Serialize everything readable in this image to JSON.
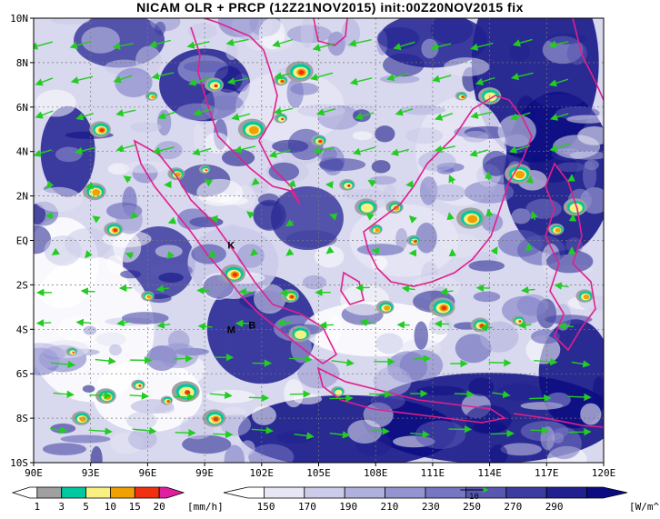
{
  "title": "NICAM OLR + PRCP (12Z21NOV2015) init:00Z20NOV2015 fix",
  "lat_labels": [
    "10N",
    "8N",
    "6N",
    "4N",
    "2N",
    "EQ",
    "2S",
    "4S",
    "6S",
    "8S",
    "10S"
  ],
  "lon_labels": [
    "90E",
    "93E",
    "96E",
    "99E",
    "102E",
    "105E",
    "108E",
    "111E",
    "114E",
    "117E",
    "120E"
  ],
  "markers": [
    {
      "text": "K",
      "lon": 100.4,
      "lat": -0.2
    },
    {
      "text": "M",
      "lon": 100.4,
      "lat": -4.0
    },
    {
      "text": "B",
      "lon": 101.5,
      "lat": -3.8
    }
  ],
  "precip_legend": {
    "labels": [
      "1",
      "3",
      "5",
      "10",
      "15",
      "20"
    ],
    "unit": "[mm/h]",
    "colors": [
      "#ffffff",
      "#a0a0a0",
      "#00c8a0",
      "#f8f080",
      "#f0a000",
      "#f03010",
      "#e020a0"
    ]
  },
  "olr_legend": {
    "labels": [
      "150",
      "170",
      "190",
      "210",
      "230",
      "250",
      "270",
      "290"
    ],
    "unit": "[W/m^2]",
    "colors": [
      "#ffffff",
      "#e6e6f4",
      "#cbcbea",
      "#b0b0de",
      "#9494d0",
      "#7676c2",
      "#5858b2",
      "#3c3ca0",
      "#202090",
      "#0c0c82"
    ],
    "vector_ref": "10"
  },
  "colors": {
    "ocean_clear": "#1a1a8a",
    "coast": "#e0208c",
    "wind": "#22cc22",
    "grid": "#777777"
  }
}
